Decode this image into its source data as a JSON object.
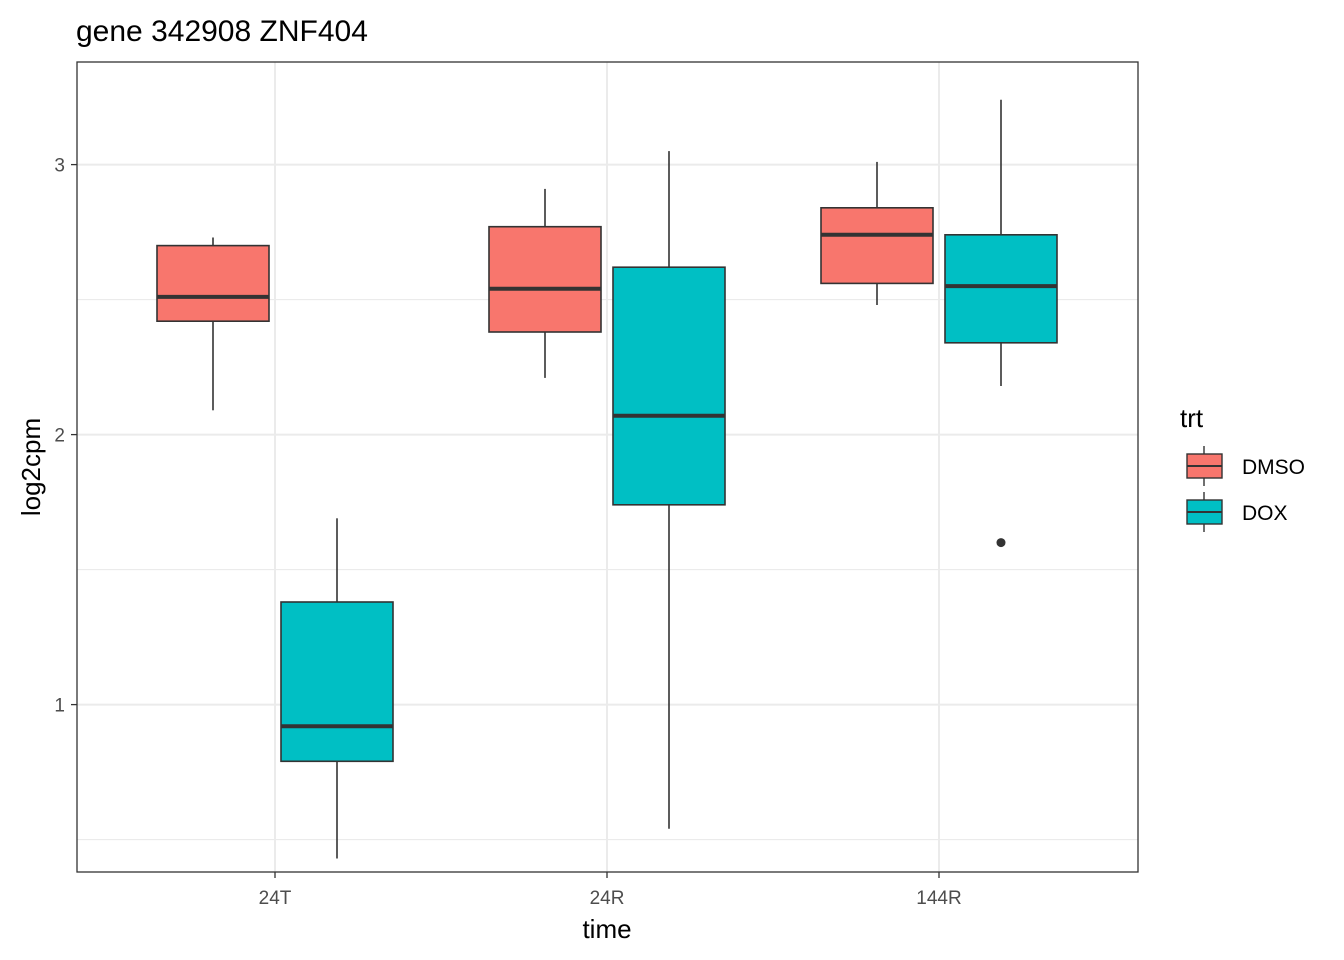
{
  "chart_data": {
    "type": "boxplot",
    "title": "gene 342908 ZNF404",
    "xlabel": "time",
    "ylabel": "log2cpm",
    "categories": [
      "24T",
      "24R",
      "144R"
    ],
    "ylim": [
      0.38,
      3.38
    ],
    "yticks": [
      1,
      2,
      3
    ],
    "ytick_labels": [
      "1",
      "2",
      "3"
    ],
    "grid": true,
    "legend": {
      "title": "trt",
      "position": "right",
      "entries": [
        "DMSO",
        "DOX"
      ]
    },
    "series": [
      {
        "name": "DMSO",
        "color": "#F8766D",
        "boxes": [
          {
            "category": "24T",
            "whisker_low": 2.09,
            "q1": 2.42,
            "median": 2.51,
            "q3": 2.7,
            "whisker_high": 2.73,
            "outliers": []
          },
          {
            "category": "24R",
            "whisker_low": 2.21,
            "q1": 2.38,
            "median": 2.54,
            "q3": 2.77,
            "whisker_high": 2.91,
            "outliers": []
          },
          {
            "category": "144R",
            "whisker_low": 2.48,
            "q1": 2.56,
            "median": 2.74,
            "q3": 2.84,
            "whisker_high": 3.01,
            "outliers": []
          }
        ]
      },
      {
        "name": "DOX",
        "color": "#00BFC4",
        "boxes": [
          {
            "category": "24T",
            "whisker_low": 0.43,
            "q1": 0.79,
            "median": 0.92,
            "q3": 1.38,
            "whisker_high": 1.69,
            "outliers": []
          },
          {
            "category": "24R",
            "whisker_low": 0.54,
            "q1": 1.74,
            "median": 2.07,
            "q3": 2.62,
            "whisker_high": 3.05,
            "outliers": []
          },
          {
            "category": "144R",
            "whisker_low": 2.18,
            "q1": 2.34,
            "median": 2.55,
            "q3": 2.74,
            "whisker_high": 3.24,
            "outliers": [
              1.6
            ]
          }
        ]
      }
    ]
  }
}
